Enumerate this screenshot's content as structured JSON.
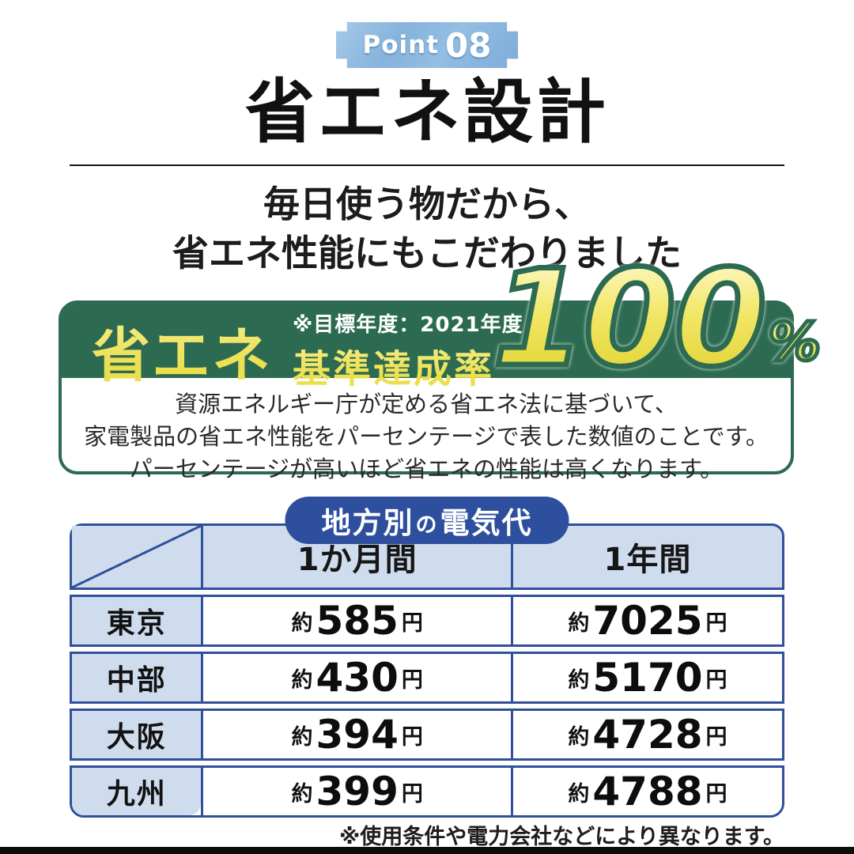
{
  "badge": {
    "word": "Point",
    "number": "08"
  },
  "header": {
    "title": "省エネ設計",
    "subtitle_line1": "毎日使う物だから、",
    "subtitle_line2": "省エネ性能にもこだわりました"
  },
  "banner": {
    "eco_label": "省エネ",
    "target_note": "※目標年度：2021年度",
    "rate_label": "基準達成率",
    "value": "100",
    "unit": "%",
    "desc_line1": "資源エネルギー庁が定める省エネ法に基づいて、",
    "desc_line2": "家電製品の省エネ性能をパーセンテージで表した数値のことです。",
    "desc_line3": "パーセンテージが高いほど省エネの性能は高くなります。"
  },
  "table": {
    "caption_part1": "地方別",
    "caption_part2": "の",
    "caption_part3": "電気代",
    "col_month": "1か月間",
    "col_year": "1年間",
    "approx": "約",
    "yen": "円",
    "rows": [
      {
        "region": "東京",
        "month": "585",
        "year": "7025"
      },
      {
        "region": "中部",
        "month": "430",
        "year": "5170"
      },
      {
        "region": "大阪",
        "month": "394",
        "year": "4728"
      },
      {
        "region": "九州",
        "month": "399",
        "year": "4788"
      }
    ]
  },
  "footnote": "※使用条件や電力会社などにより異なります。",
  "colors": {
    "green": "#2c6b52",
    "yellow": "#ecdf4e",
    "table_blue": "#30509c",
    "pill_blue": "#2e4f9e",
    "cell_blue": "#cfdcee",
    "badge_blue": "#86b3dc"
  }
}
